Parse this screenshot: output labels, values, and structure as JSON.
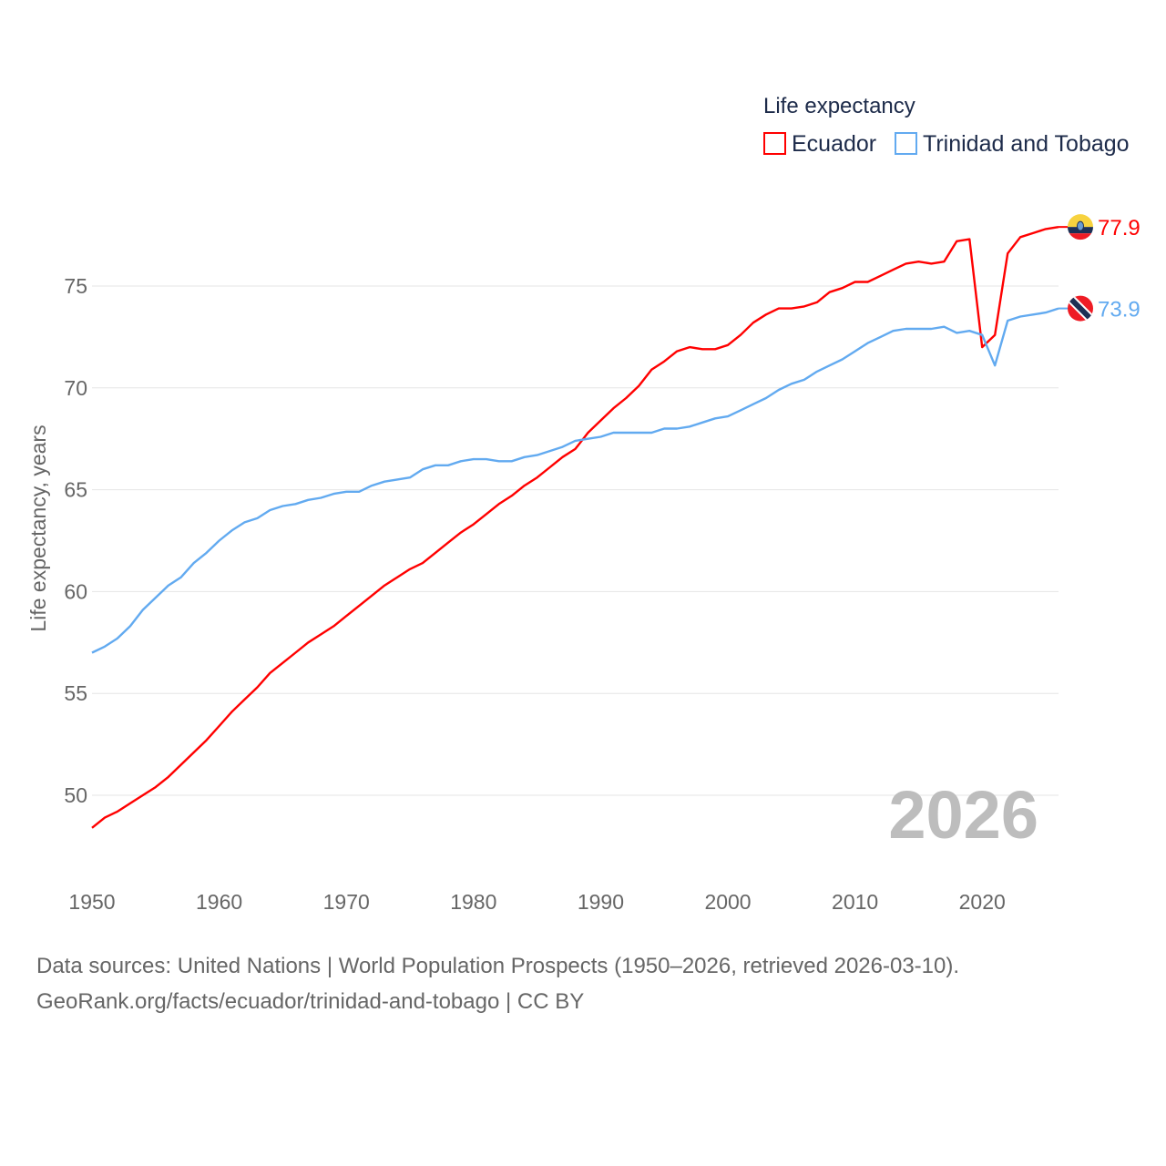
{
  "chart_data": {
    "type": "line",
    "title": "",
    "legend_title": "Life expectancy",
    "legend_position": "top-right",
    "xlabel": "",
    "ylabel": "Life expectancy, years",
    "xlim": [
      1950,
      2026
    ],
    "ylim": [
      47,
      80
    ],
    "grid": true,
    "x_ticks": [
      "1950",
      "1960",
      "1970",
      "1980",
      "1990",
      "2000",
      "2010",
      "2020"
    ],
    "y_ticks": [
      "50",
      "55",
      "60",
      "65",
      "70",
      "75"
    ],
    "year_watermark": "2026",
    "x_start": 1950,
    "series": [
      {
        "name": "Ecuador",
        "color": "#ff0000",
        "end_label": "77.9",
        "flag": "ecuador-flag",
        "values": [
          48.4,
          48.9,
          49.2,
          49.6,
          50.0,
          50.4,
          50.9,
          51.5,
          52.1,
          52.7,
          53.4,
          54.1,
          54.7,
          55.3,
          56.0,
          56.5,
          57.0,
          57.5,
          57.9,
          58.3,
          58.8,
          59.3,
          59.8,
          60.3,
          60.7,
          61.1,
          61.4,
          61.9,
          62.4,
          62.9,
          63.3,
          63.8,
          64.3,
          64.7,
          65.2,
          65.6,
          66.1,
          66.6,
          67.0,
          67.8,
          68.4,
          69.0,
          69.5,
          70.1,
          70.9,
          71.3,
          71.8,
          72.0,
          71.9,
          71.9,
          72.1,
          72.6,
          73.2,
          73.6,
          73.9,
          73.9,
          74.0,
          74.2,
          74.7,
          74.9,
          75.2,
          75.2,
          75.5,
          75.8,
          76.1,
          76.2,
          76.1,
          76.2,
          77.2,
          77.3,
          72.0,
          72.6,
          76.6,
          77.4,
          77.6,
          77.8,
          77.9
        ]
      },
      {
        "name": "Trinidad and Tobago",
        "color": "#62aaf0",
        "end_label": "73.9",
        "flag": "trinidad-and-tobago-flag",
        "values": [
          57.0,
          57.3,
          57.7,
          58.3,
          59.1,
          59.7,
          60.3,
          60.7,
          61.4,
          61.9,
          62.5,
          63.0,
          63.4,
          63.6,
          64.0,
          64.2,
          64.3,
          64.5,
          64.6,
          64.8,
          64.9,
          64.9,
          65.2,
          65.4,
          65.5,
          65.6,
          66.0,
          66.2,
          66.2,
          66.4,
          66.5,
          66.5,
          66.4,
          66.4,
          66.6,
          66.7,
          66.9,
          67.1,
          67.4,
          67.5,
          67.6,
          67.8,
          67.8,
          67.8,
          67.8,
          68.0,
          68.0,
          68.1,
          68.3,
          68.5,
          68.6,
          68.9,
          69.2,
          69.5,
          69.9,
          70.2,
          70.4,
          70.8,
          71.1,
          71.4,
          71.8,
          72.2,
          72.5,
          72.8,
          72.9,
          72.9,
          72.9,
          73.0,
          72.7,
          72.8,
          72.6,
          71.1,
          73.3,
          73.5,
          73.6,
          73.7,
          73.9
        ]
      }
    ]
  },
  "source": {
    "line1": "Data sources: United Nations | World Population Prospects (1950–2026, retrieved 2026-03-10).",
    "line2": "GeoRank.org/facts/ecuador/trinidad-and-tobago | CC BY"
  }
}
